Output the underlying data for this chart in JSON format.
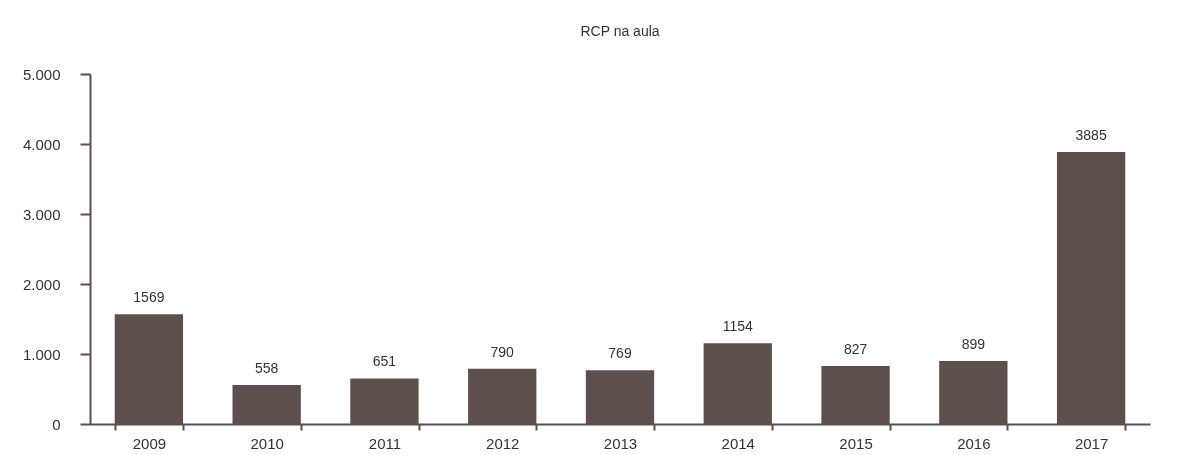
{
  "chart_data": {
    "type": "bar",
    "title": "RCP na aula",
    "categories": [
      "2009",
      "2010",
      "2011",
      "2012",
      "2013",
      "2014",
      "2015",
      "2016",
      "2017"
    ],
    "values": [
      1569,
      558,
      651,
      790,
      769,
      1154,
      827,
      899,
      3885
    ],
    "color": "#5d4f4b",
    "ylim": [
      0,
      5000
    ],
    "yticks": [
      0,
      {
        "value": 1000,
        "label": "1.000"
      },
      {
        "value": 2000,
        "label": "2.000"
      },
      {
        "value": 3000,
        "label": "3.000"
      },
      {
        "value": 4000,
        "label": "4.000"
      },
      {
        "value": 5000,
        "label": "5.000"
      }
    ],
    "data_labels": true,
    "grid": false
  }
}
